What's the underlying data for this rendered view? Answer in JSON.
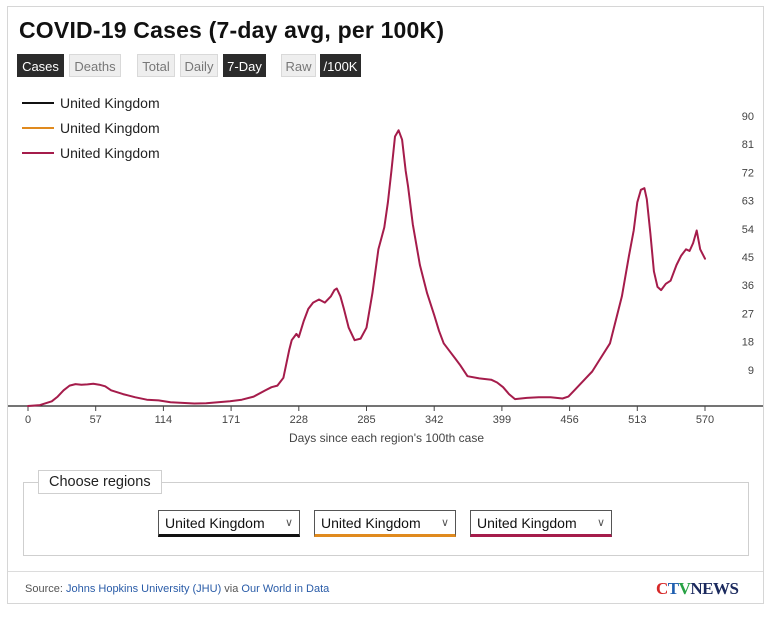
{
  "header": {
    "title": "COVID-19 Cases (7-day avg, per 100K)"
  },
  "toggles": {
    "metric": [
      {
        "label": "Cases",
        "active": true
      },
      {
        "label": "Deaths",
        "active": false
      }
    ],
    "aggregation": [
      {
        "label": "Total",
        "active": false
      },
      {
        "label": "Daily",
        "active": false
      },
      {
        "label": "7-Day",
        "active": true
      }
    ],
    "normalization": [
      {
        "label": "Raw",
        "active": false
      },
      {
        "label": "/100K",
        "active": true
      }
    ]
  },
  "legend": [
    {
      "label": "United Kingdom",
      "color": "#111111"
    },
    {
      "label": "United Kingdom",
      "color": "#e08a1e"
    },
    {
      "label": "United Kingdom",
      "color": "#a51c4b"
    }
  ],
  "regions": {
    "label": "Choose regions",
    "selects": [
      {
        "value": "United Kingdom",
        "color": "#111111"
      },
      {
        "value": "United Kingdom",
        "color": "#e08a1e"
      },
      {
        "value": "United Kingdom",
        "color": "#a51c4b"
      }
    ]
  },
  "footer": {
    "source_prefix": "Source: ",
    "source_link1": "Johns Hopkins University (JHU)",
    "source_via": " via ",
    "source_link2": "Our World in Data",
    "logo_c": "C",
    "logo_t": "T",
    "logo_v": "V",
    "logo_news": "NEWS"
  },
  "chart_data": {
    "type": "line",
    "xlabel": "Days since each region's 100th case",
    "ylabel": "",
    "xlim": [
      0,
      570
    ],
    "ylim": [
      0,
      90
    ],
    "x_ticks": [
      0,
      57,
      114,
      171,
      228,
      285,
      342,
      399,
      456,
      513,
      570
    ],
    "y_ticks": [
      9,
      18,
      27,
      36,
      45,
      54,
      63,
      72,
      81,
      90
    ],
    "y_axis_position": "right",
    "grid": false,
    "legend_position": "top-left",
    "series": [
      {
        "name": "United Kingdom",
        "color": "#a51c4b",
        "x": [
          0,
          10,
          20,
          25,
          30,
          35,
          40,
          45,
          50,
          55,
          60,
          65,
          70,
          80,
          90,
          100,
          110,
          120,
          130,
          140,
          150,
          160,
          170,
          180,
          190,
          200,
          205,
          210,
          215,
          220,
          222,
          224,
          226,
          228,
          232,
          236,
          240,
          245,
          250,
          255,
          258,
          260,
          263,
          266,
          270,
          275,
          280,
          285,
          290,
          295,
          300,
          303,
          306,
          309,
          312,
          315,
          318,
          320,
          324,
          330,
          336,
          342,
          346,
          350,
          356,
          360,
          364,
          370,
          380,
          390,
          395,
          400,
          405,
          410,
          415,
          420,
          430,
          440,
          450,
          455,
          460,
          465,
          470,
          475,
          480,
          490,
          500,
          506,
          510,
          513,
          516,
          519,
          521,
          524,
          527,
          530,
          533,
          537,
          541,
          546,
          550,
          554,
          557,
          560,
          563,
          566,
          570
        ],
        "values": [
          0,
          0.3,
          1.5,
          3,
          5,
          6.5,
          7,
          6.8,
          6.9,
          7.1,
          6.8,
          6.3,
          5,
          3.8,
          2.8,
          2,
          1.8,
          1.2,
          1,
          0.8,
          0.9,
          1.2,
          1.5,
          2,
          3,
          5,
          6,
          6.5,
          9,
          18,
          21,
          22,
          23,
          22,
          27,
          31,
          33,
          34,
          33,
          35,
          37,
          37.5,
          35,
          31,
          25,
          21,
          21.5,
          25,
          36,
          50,
          57,
          65,
          75,
          86,
          88,
          85,
          75,
          70,
          58,
          45,
          36,
          29,
          24,
          20,
          17,
          15,
          13,
          9.5,
          8.8,
          8.4,
          7.5,
          6,
          3.8,
          2.2,
          2.4,
          2.6,
          2.8,
          2.8,
          2.4,
          3,
          5,
          7,
          9,
          11,
          14,
          20,
          35,
          48,
          56,
          65,
          69,
          69.5,
          66,
          55,
          43,
          38,
          37,
          39,
          40,
          45,
          48,
          50,
          49.5,
          52,
          56,
          50,
          47
        ]
      }
    ]
  }
}
